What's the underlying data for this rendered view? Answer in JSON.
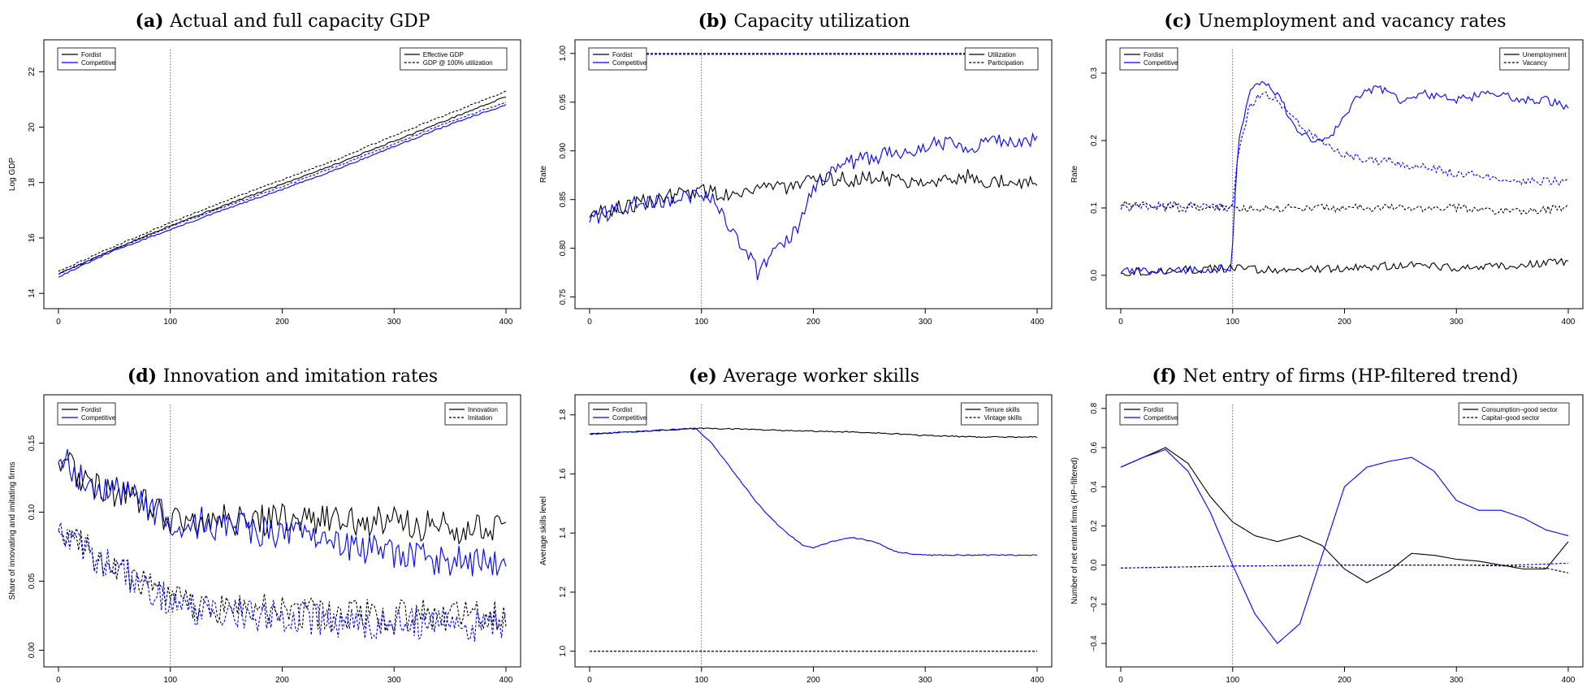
{
  "colors": {
    "Fordist": "#000000",
    "Competitive": "#0000ff"
  },
  "chart_data": [
    {
      "type": "line",
      "panel_tag": "(a)",
      "title": "Actual and full capacity GDP",
      "xlabel": "",
      "ylabel": "Log GDP",
      "xlim": [
        0,
        400
      ],
      "ylim": [
        13.8,
        22.8
      ],
      "xticks": [
        "0",
        "100",
        "200",
        "300",
        "400"
      ],
      "yticks": [
        "14",
        "16",
        "18",
        "20",
        "22"
      ],
      "regime_legend": [
        "Fordist",
        "Competitive"
      ],
      "style_legend": [
        "Effective GDP",
        "GDP @ 100% utilization"
      ],
      "vline": 100,
      "series": [
        {
          "name": "Fordist",
          "style": "solid",
          "x": [
            0,
            50,
            100,
            150,
            200,
            250,
            300,
            350,
            400
          ],
          "values": [
            14.7,
            15.6,
            16.45,
            17.2,
            17.95,
            18.7,
            19.5,
            20.3,
            21.1
          ]
        },
        {
          "name": "Fordist",
          "style": "dashed",
          "x": [
            0,
            50,
            100,
            150,
            200,
            250,
            300,
            350,
            400
          ],
          "values": [
            14.8,
            15.7,
            16.55,
            17.35,
            18.1,
            18.85,
            19.7,
            20.5,
            21.3
          ]
        },
        {
          "name": "Competitive",
          "style": "solid",
          "x": [
            0,
            50,
            100,
            150,
            200,
            250,
            300,
            350,
            400
          ],
          "values": [
            14.6,
            15.55,
            16.3,
            17.05,
            17.75,
            18.5,
            19.3,
            20.1,
            20.8
          ]
        },
        {
          "name": "Competitive",
          "style": "dashed",
          "x": [
            0,
            50,
            100,
            150,
            200,
            250,
            300,
            350,
            400
          ],
          "values": [
            14.7,
            15.6,
            16.4,
            17.15,
            17.85,
            18.6,
            19.4,
            20.2,
            20.9
          ]
        }
      ]
    },
    {
      "type": "line",
      "panel_tag": "(b)",
      "title": "Capacity utilization",
      "xlabel": "",
      "ylabel": "Rate",
      "xlim": [
        0,
        400
      ],
      "ylim": [
        0.748,
        1.004
      ],
      "xticks": [
        "0",
        "100",
        "200",
        "300",
        "400"
      ],
      "yticks": [
        "0.75",
        "0.80",
        "0.85",
        "0.90",
        "0.95",
        "1.00"
      ],
      "regime_legend": [
        "Fordist",
        "Competitive"
      ],
      "style_legend": [
        "Utilization",
        "Participation"
      ],
      "vline": 100,
      "series": [
        {
          "name": "Fordist",
          "style": "solid",
          "x": [
            0,
            40,
            80,
            100,
            120,
            140,
            160,
            180,
            200,
            220,
            240,
            260,
            280,
            300,
            320,
            340,
            360,
            380,
            400
          ],
          "values": [
            0.835,
            0.845,
            0.855,
            0.86,
            0.855,
            0.86,
            0.865,
            0.862,
            0.868,
            0.872,
            0.87,
            0.874,
            0.868,
            0.872,
            0.87,
            0.874,
            0.868,
            0.87,
            0.865
          ]
        },
        {
          "name": "Competitive",
          "style": "solid",
          "x": [
            0,
            40,
            80,
            100,
            110,
            120,
            130,
            140,
            150,
            160,
            170,
            180,
            190,
            200,
            220,
            240,
            260,
            280,
            300,
            320,
            340,
            360,
            380,
            400
          ],
          "values": [
            0.83,
            0.845,
            0.85,
            0.858,
            0.85,
            0.835,
            0.81,
            0.8,
            0.775,
            0.79,
            0.8,
            0.81,
            0.83,
            0.86,
            0.885,
            0.89,
            0.895,
            0.9,
            0.905,
            0.91,
            0.905,
            0.91,
            0.91,
            0.91
          ]
        },
        {
          "name": "Fordist",
          "style": "dashed",
          "x": [
            0,
            400
          ],
          "values": [
            1.0,
            1.0
          ]
        },
        {
          "name": "Competitive",
          "style": "dashed",
          "x": [
            0,
            400
          ],
          "values": [
            0.999,
            0.999
          ]
        }
      ]
    },
    {
      "type": "line",
      "panel_tag": "(c)",
      "title": "Unemployment and vacancy rates",
      "xlabel": "",
      "ylabel": "Rate",
      "xlim": [
        0,
        400
      ],
      "ylim": [
        -0.035,
        0.335
      ],
      "xticks": [
        "0",
        "100",
        "200",
        "300",
        "400"
      ],
      "yticks": [
        "0.0",
        "0.1",
        "0.2",
        "0.3"
      ],
      "regime_legend": [
        "Fordist",
        "Competitive"
      ],
      "style_legend": [
        "Unemployment",
        "Vacancy"
      ],
      "vline": 100,
      "series": [
        {
          "name": "Fordist",
          "style": "solid",
          "x": [
            0,
            50,
            100,
            150,
            200,
            250,
            300,
            350,
            400
          ],
          "values": [
            0.005,
            0.008,
            0.01,
            0.008,
            0.01,
            0.015,
            0.012,
            0.015,
            0.02
          ]
        },
        {
          "name": "Fordist",
          "style": "dashed",
          "x": [
            0,
            50,
            100,
            150,
            200,
            250,
            300,
            350,
            400
          ],
          "values": [
            0.105,
            0.1,
            0.1,
            0.1,
            0.1,
            0.1,
            0.1,
            0.095,
            0.1
          ]
        },
        {
          "name": "Competitive",
          "style": "solid",
          "x": [
            0,
            50,
            99,
            100,
            105,
            115,
            125,
            140,
            155,
            170,
            185,
            200,
            215,
            230,
            250,
            270,
            300,
            330,
            360,
            380,
            400
          ],
          "values": [
            0.005,
            0.008,
            0.01,
            0.05,
            0.2,
            0.27,
            0.29,
            0.27,
            0.22,
            0.2,
            0.2,
            0.24,
            0.27,
            0.28,
            0.26,
            0.27,
            0.26,
            0.27,
            0.26,
            0.26,
            0.25
          ]
        },
        {
          "name": "Competitive",
          "style": "dashed",
          "x": [
            0,
            50,
            100,
            105,
            115,
            125,
            140,
            155,
            170,
            185,
            200,
            220,
            240,
            260,
            280,
            300,
            320,
            340,
            360,
            380,
            400
          ],
          "values": [
            0.1,
            0.105,
            0.1,
            0.18,
            0.25,
            0.27,
            0.26,
            0.23,
            0.21,
            0.19,
            0.18,
            0.17,
            0.17,
            0.16,
            0.16,
            0.15,
            0.15,
            0.14,
            0.14,
            0.14,
            0.14
          ]
        }
      ]
    },
    {
      "type": "line",
      "panel_tag": "(d)",
      "title": "Innovation and imitation rates",
      "xlabel": "",
      "ylabel": "Share of innovating and imitating firms",
      "xlim": [
        0,
        400
      ],
      "ylim": [
        -0.005,
        0.178
      ],
      "xticks": [
        "0",
        "100",
        "200",
        "300",
        "400"
      ],
      "yticks": [
        "0.00",
        "0.05",
        "0.10",
        "0.15"
      ],
      "regime_legend": [
        "Fordist",
        "Competitive"
      ],
      "style_legend": [
        "Innovation",
        "Imitation"
      ],
      "vline": 100,
      "series": [
        {
          "name": "Fordist",
          "style": "solid",
          "x": [
            0,
            20,
            50,
            80,
            100,
            150,
            200,
            250,
            300,
            350,
            400
          ],
          "values": [
            0.14,
            0.125,
            0.115,
            0.105,
            0.095,
            0.095,
            0.095,
            0.095,
            0.092,
            0.09,
            0.085
          ]
        },
        {
          "name": "Fordist",
          "style": "dashed",
          "x": [
            0,
            20,
            50,
            80,
            100,
            150,
            200,
            250,
            300,
            350,
            400
          ],
          "values": [
            0.09,
            0.075,
            0.06,
            0.045,
            0.035,
            0.03,
            0.03,
            0.025,
            0.025,
            0.025,
            0.025
          ]
        },
        {
          "name": "Competitive",
          "style": "solid",
          "x": [
            0,
            20,
            50,
            80,
            100,
            150,
            200,
            250,
            300,
            350,
            400
          ],
          "values": [
            0.14,
            0.125,
            0.115,
            0.105,
            0.095,
            0.09,
            0.085,
            0.075,
            0.07,
            0.065,
            0.06
          ]
        },
        {
          "name": "Competitive",
          "style": "dashed",
          "x": [
            0,
            20,
            50,
            80,
            100,
            150,
            200,
            250,
            300,
            350,
            400
          ],
          "values": [
            0.09,
            0.075,
            0.06,
            0.045,
            0.035,
            0.025,
            0.025,
            0.02,
            0.02,
            0.018,
            0.018
          ]
        }
      ]
    },
    {
      "type": "line",
      "panel_tag": "(e)",
      "title": "Average worker skills",
      "xlabel": "",
      "ylabel": "Average skills level",
      "xlim": [
        0,
        400
      ],
      "ylim": [
        0.98,
        1.835
      ],
      "xticks": [
        "0",
        "100",
        "200",
        "300",
        "400"
      ],
      "yticks": [
        "1.0",
        "1.2",
        "1.4",
        "1.6",
        "1.8"
      ],
      "regime_legend": [
        "Fordist",
        "Competitive"
      ],
      "style_legend": [
        "Tenure skills",
        "Vintage skills"
      ],
      "vline": 100,
      "series": [
        {
          "name": "Fordist",
          "style": "solid",
          "x": [
            0,
            50,
            100,
            150,
            200,
            250,
            300,
            350,
            400
          ],
          "values": [
            1.735,
            1.745,
            1.755,
            1.75,
            1.745,
            1.74,
            1.73,
            1.725,
            1.725
          ]
        },
        {
          "name": "Competitive",
          "style": "solid",
          "x": [
            0,
            50,
            95,
            110,
            130,
            150,
            170,
            190,
            200,
            215,
            235,
            255,
            275,
            300,
            350,
            400
          ],
          "values": [
            1.735,
            1.745,
            1.755,
            1.7,
            1.6,
            1.5,
            1.42,
            1.36,
            1.35,
            1.37,
            1.385,
            1.37,
            1.335,
            1.325,
            1.325,
            1.325
          ]
        },
        {
          "name": "Fordist",
          "style": "dashed",
          "x": [
            0,
            400
          ],
          "values": [
            1.0,
            1.0
          ]
        },
        {
          "name": "Competitive",
          "style": "dashed",
          "x": [
            0,
            400
          ],
          "values": [
            1.0,
            1.0
          ]
        }
      ]
    },
    {
      "type": "line",
      "panel_tag": "(f)",
      "title": "Net entry of firms (HP-filtered trend)",
      "xlabel": "",
      "ylabel": "Number of net entrant firms (HP−filtered)",
      "xlim": [
        0,
        400
      ],
      "ylim": [
        -0.47,
        0.82
      ],
      "xticks": [
        "0",
        "100",
        "200",
        "300",
        "400"
      ],
      "yticks": [
        "−0.4",
        "−0.2",
        "0.0",
        "0.2",
        "0.4",
        "0.6",
        "0.8"
      ],
      "regime_legend": [
        "Fordist",
        "Competitive"
      ],
      "style_legend": [
        "Consumption−good sector",
        "Capital−good sector"
      ],
      "vline": 100,
      "series": [
        {
          "name": "Fordist",
          "style": "solid",
          "x": [
            0,
            20,
            40,
            60,
            80,
            100,
            120,
            140,
            160,
            180,
            200,
            220,
            240,
            260,
            280,
            300,
            320,
            340,
            360,
            380,
            400
          ],
          "values": [
            0.5,
            0.55,
            0.6,
            0.52,
            0.35,
            0.22,
            0.15,
            0.12,
            0.15,
            0.1,
            -0.02,
            -0.09,
            -0.03,
            0.06,
            0.05,
            0.03,
            0.02,
            0.0,
            -0.02,
            -0.02,
            0.12
          ]
        },
        {
          "name": "Competitive",
          "style": "solid",
          "x": [
            0,
            20,
            40,
            60,
            80,
            100,
            120,
            140,
            160,
            180,
            200,
            220,
            240,
            260,
            280,
            300,
            320,
            340,
            360,
            380,
            400
          ],
          "values": [
            0.5,
            0.55,
            0.59,
            0.48,
            0.27,
            0.0,
            -0.25,
            -0.4,
            -0.3,
            0.05,
            0.4,
            0.5,
            0.53,
            0.55,
            0.48,
            0.33,
            0.28,
            0.28,
            0.24,
            0.18,
            0.15
          ]
        },
        {
          "name": "Fordist",
          "style": "dashed",
          "x": [
            0,
            100,
            200,
            300,
            350,
            380,
            400
          ],
          "values": [
            -0.015,
            -0.005,
            0.0,
            0.0,
            -0.005,
            -0.015,
            -0.04
          ]
        },
        {
          "name": "Competitive",
          "style": "dashed",
          "x": [
            0,
            100,
            200,
            300,
            350,
            380,
            400
          ],
          "values": [
            -0.015,
            -0.005,
            0.0,
            0.0,
            0.0,
            0.005,
            0.01
          ]
        }
      ]
    }
  ]
}
